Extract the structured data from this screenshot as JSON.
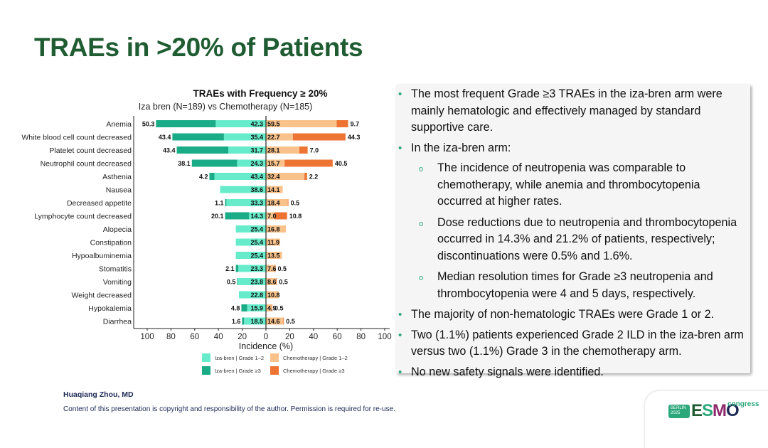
{
  "slide": {
    "title": "TRAEs in >20% of Patients",
    "author": "Huaqiang Zhou, MD",
    "copyright": "Content of this presentation is copyright and responsibility of the author. Permission is required for re-use."
  },
  "logo": {
    "city": "BERLIN",
    "year": "2025",
    "letters": [
      "E",
      "S",
      "M",
      "O"
    ],
    "letter_colors": [
      "#1f5c32",
      "#2aa87a",
      "#8e2a6b",
      "#1c2a55"
    ],
    "suffix": "congress"
  },
  "colors": {
    "iza_g12": "#66eccb",
    "iza_g3": "#1aab87",
    "chemo_g12": "#f9c28a",
    "chemo_g3": "#ee7434",
    "title_green": "#1f5c32",
    "bullet_green": "#2aa87a"
  },
  "bullets": [
    {
      "level": 1,
      "text": "The most frequent Grade ≥3 TRAEs in the iza-bren arm were mainly hematologic and effectively managed by standard supportive care."
    },
    {
      "level": 1,
      "text": "In the iza-bren arm:"
    },
    {
      "level": 2,
      "text": "The incidence of neutropenia was comparable to chemotherapy, while anemia and thrombocytopenia occurred at higher rates."
    },
    {
      "level": 2,
      "text": "Dose reductions due to neutropenia and thrombocytopenia occurred in 14.3% and 21.2% of patients, respectively; discontinuations were 0.5% and 1.6%."
    },
    {
      "level": 2,
      "text": "Median resolution times for Grade ≥3 neutropenia and thrombocytopenia were 4 and 5 days, respectively."
    },
    {
      "level": 1,
      "text": "The majority of  non-hematologic TRAEs were Grade 1 or 2."
    },
    {
      "level": 1,
      "text": "Two (1.1%) patients experienced Grade 2 ILD in the iza-bren arm versus two (1.1%) Grade 3 in the chemotherapy arm."
    },
    {
      "level": 1,
      "text": "No new safety signals were identified."
    }
  ],
  "chart_data": {
    "type": "bar",
    "orientation": "horizontal-diverging-stacked",
    "title": "TRAEs with Frequency ≥ 20%",
    "subtitle": "Iza bren (N=189) vs Chemotherapy (N=185)",
    "xlabel": "Incidence (%)",
    "ylabel": "",
    "xlim": [
      -100,
      100
    ],
    "xticks": [
      -100,
      -80,
      -60,
      -40,
      -20,
      0,
      20,
      40,
      60,
      80,
      100
    ],
    "xtick_labels": [
      "100",
      "80",
      "60",
      "40",
      "20",
      "0",
      "20",
      "40",
      "60",
      "80",
      "100"
    ],
    "grid": false,
    "legend_position": "bottom",
    "categories": [
      "Anemia",
      "White blood cell count decreased",
      "Platelet count decreased",
      "Neutrophil count decreased",
      "Asthenia",
      "Nausea",
      "Decreased appetite",
      "Lymphocyte count decreased",
      "Alopecia",
      "Constipation",
      "Hypoalbuminemia",
      "Stomatitis",
      "Vomiting",
      "Weight decreased",
      "Hypokalemia",
      "Diarrhea"
    ],
    "series": [
      {
        "name": "Iza-bren | Grade 1–2",
        "side": "left",
        "color_key": "iza_g12",
        "values": [
          42.3,
          35.4,
          31.7,
          24.3,
          43.4,
          38.6,
          33.3,
          14.3,
          25.4,
          25.4,
          25.4,
          23.3,
          23.8,
          22.8,
          15.9,
          18.5
        ]
      },
      {
        "name": "Iza-bren | Grade ≥3",
        "side": "left",
        "color_key": "iza_g3",
        "values": [
          50.3,
          43.4,
          43.4,
          38.1,
          4.2,
          null,
          1.1,
          20.1,
          null,
          null,
          null,
          2.1,
          0.5,
          null,
          4.8,
          1.6
        ]
      },
      {
        "name": "Chemotherapy | Grade 1–2",
        "side": "right",
        "color_key": "chemo_g12",
        "values": [
          59.5,
          22.7,
          28.1,
          15.7,
          32.4,
          14.1,
          18.4,
          7.0,
          16.8,
          11.9,
          13.5,
          7.6,
          8.6,
          10.8,
          4.9,
          14.6
        ]
      },
      {
        "name": "Chemotherapy | Grade ≥3",
        "side": "right",
        "color_key": "chemo_g3",
        "values": [
          9.7,
          44.3,
          7.0,
          40.5,
          2.2,
          null,
          0.5,
          10.8,
          null,
          null,
          null,
          0.5,
          0.5,
          null,
          0.5,
          0.5
        ]
      }
    ],
    "legend": [
      "Iza-bren | Grade 1–2",
      "Chemotherapy | Grade 1–2",
      "Iza-bren | Grade ≥3",
      "Chemotherapy | Grade ≥3"
    ]
  }
}
